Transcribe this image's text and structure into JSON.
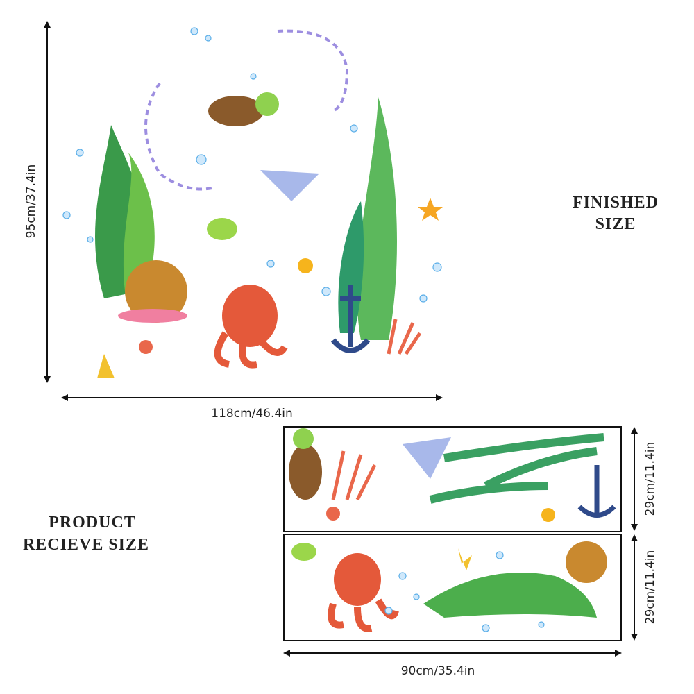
{
  "dimensions": {
    "finished_height": "95cm/37.4in",
    "finished_width": "118cm/46.4in",
    "sheet_1_height": "29cm/11.4in",
    "sheet_2_height": "29cm/11.4in",
    "sheet_width": "90cm/35.4in"
  },
  "labels": {
    "finished_size": [
      "FINISHED",
      "SIZE"
    ],
    "product_receive_size": [
      "PRODUCT",
      "RECIEVE SIZE"
    ]
  }
}
